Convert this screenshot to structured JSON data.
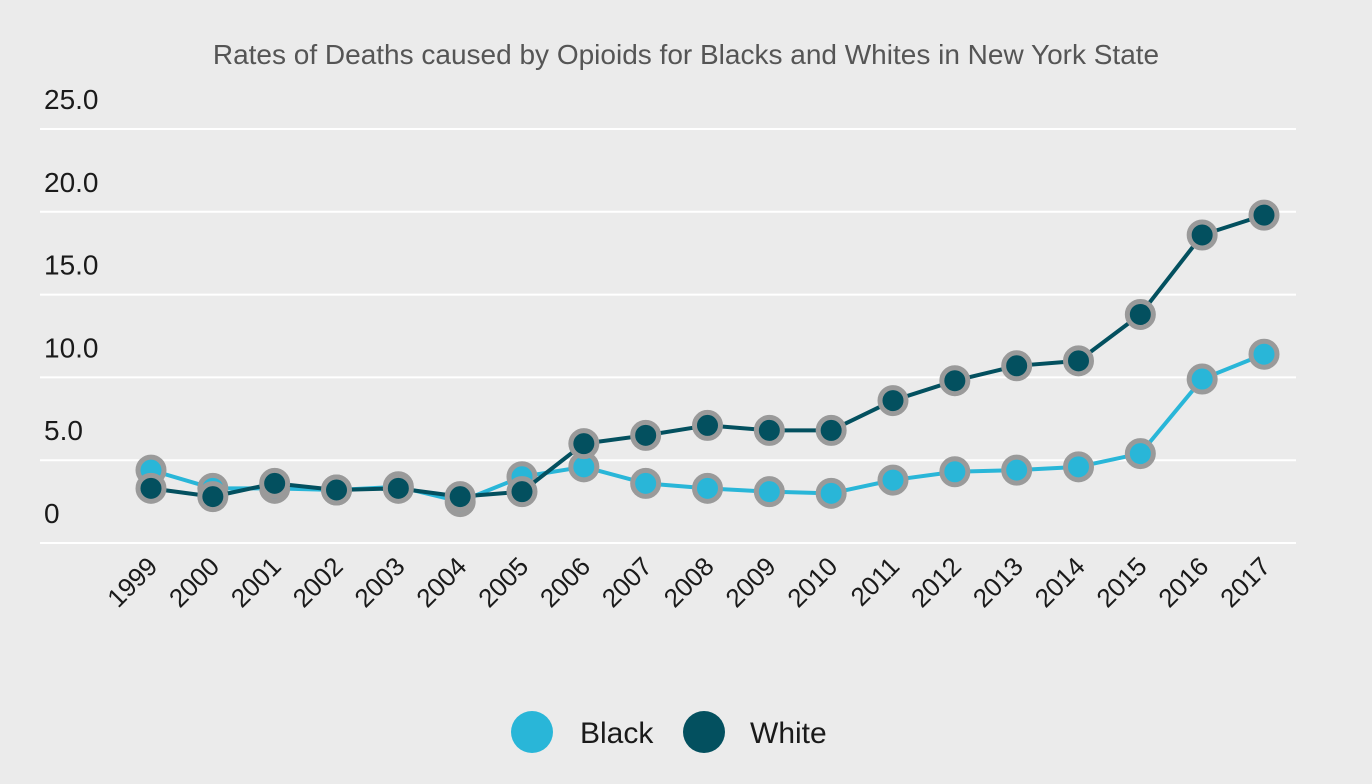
{
  "chart_data": {
    "type": "line",
    "title": "Rates of Deaths caused by Opioids for Blacks and  Whites in New York State",
    "xlabel": "",
    "ylabel": "",
    "ylim": [
      0,
      25
    ],
    "y_ticks": [
      "0",
      "5.0",
      "10.0",
      "15.0",
      "20.0",
      "25.0"
    ],
    "y_tick_values": [
      0,
      5,
      10,
      15,
      20,
      25
    ],
    "categories": [
      "1999",
      "2000",
      "2001",
      "2002",
      "2003",
      "2004",
      "2005",
      "2006",
      "2007",
      "2008",
      "2009",
      "2010",
      "2011",
      "2012",
      "2013",
      "2014",
      "2015",
      "2016",
      "2017"
    ],
    "grid": true,
    "legend_position": "bottom",
    "series": [
      {
        "name": "Black",
        "color": "#29b6d8",
        "values": [
          4.4,
          3.3,
          3.3,
          3.2,
          3.4,
          2.5,
          4.0,
          4.6,
          3.6,
          3.3,
          3.1,
          3.0,
          3.8,
          4.3,
          4.4,
          4.6,
          5.4,
          9.9,
          11.4
        ]
      },
      {
        "name": "White",
        "color": "#03505f",
        "values": [
          3.3,
          2.8,
          3.6,
          3.2,
          3.3,
          2.8,
          3.1,
          6.0,
          6.5,
          7.1,
          6.8,
          6.8,
          8.6,
          9.8,
          10.7,
          11.0,
          13.8,
          18.6,
          19.8
        ]
      }
    ]
  }
}
